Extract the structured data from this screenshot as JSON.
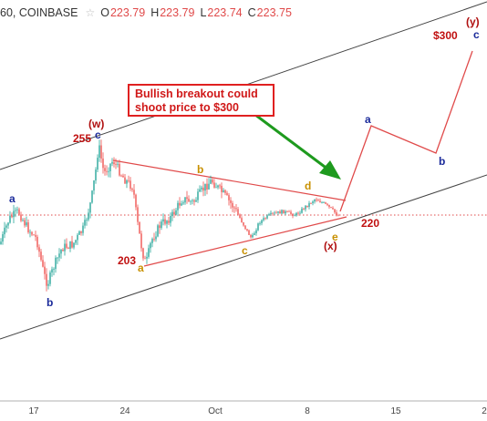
{
  "header": {
    "symbol": "60, COINBASE",
    "star": "☆",
    "o_label": "O",
    "o_value": "223.79",
    "h_label": "H",
    "h_value": "223.79",
    "l_label": "L",
    "l_value": "223.74",
    "c_label": "C",
    "c_value": "223.75"
  },
  "callout": {
    "text_line1": "Bullish breakout could",
    "text_line2": "shoot price to $300"
  },
  "chart_data": {
    "type": "candlestick",
    "xaxis_ticks": [
      "17",
      "24",
      "Oct",
      "8",
      "15",
      "2"
    ],
    "price_levels": {
      "current": 223.75
    },
    "wave_labels": [
      {
        "text": "a",
        "color": "#1a2a9a"
      },
      {
        "text": "b",
        "color": "#1a2a9a"
      },
      {
        "text": "(w)",
        "color": "#b01010"
      },
      {
        "text": "c",
        "color": "#1a2a9a"
      },
      {
        "text": "a",
        "color": "#c89000"
      },
      {
        "text": "b",
        "color": "#c89000"
      },
      {
        "text": "c",
        "color": "#c89000"
      },
      {
        "text": "d",
        "color": "#c89000"
      },
      {
        "text": "e",
        "color": "#c89000"
      },
      {
        "text": "(x)",
        "color": "#b01010"
      },
      {
        "text": "a",
        "color": "#1a2a9a"
      },
      {
        "text": "b",
        "color": "#1a2a9a"
      },
      {
        "text": "(y)",
        "color": "#b01010"
      },
      {
        "text": "c",
        "color": "#1a2a9a"
      }
    ],
    "price_annotations": [
      "255",
      "203",
      "220",
      "$300"
    ],
    "colors": {
      "up": "#26a69a",
      "down": "#ef5350",
      "channel": "#444444",
      "triangle": "#e04a4a",
      "projection": "#e04a4a",
      "arrow": "#1e9a1e"
    }
  }
}
